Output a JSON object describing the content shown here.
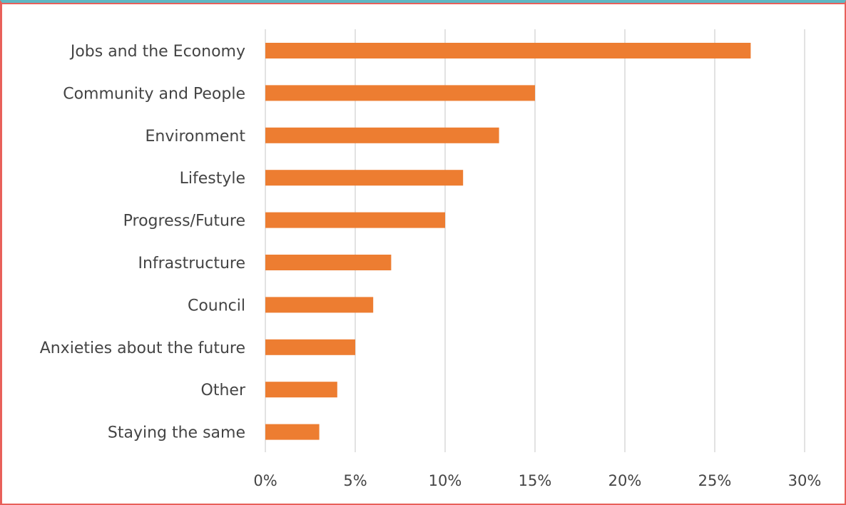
{
  "chart_data": {
    "type": "bar",
    "orientation": "horizontal",
    "title": "",
    "xlabel": "",
    "ylabel": "",
    "categories": [
      "Jobs and the Economy",
      "Community and People",
      "Environment",
      "Lifestyle",
      "Progress/Future",
      "Infrastructure",
      "Council",
      "Anxieties about the future",
      "Other",
      "Staying the same"
    ],
    "values": [
      27,
      15,
      13,
      11,
      10,
      7,
      6,
      5,
      4,
      3
    ],
    "value_unit": "percent",
    "xlim": [
      0,
      30
    ],
    "xticks": [
      0,
      5,
      10,
      15,
      20,
      25,
      30
    ],
    "xtick_labels": [
      "0%",
      "5%",
      "10%",
      "15%",
      "20%",
      "25%",
      "30%"
    ],
    "grid": "vertical",
    "legend": "none",
    "bar_color": "#ed7d31",
    "grid_color": "#d9d9d9"
  }
}
